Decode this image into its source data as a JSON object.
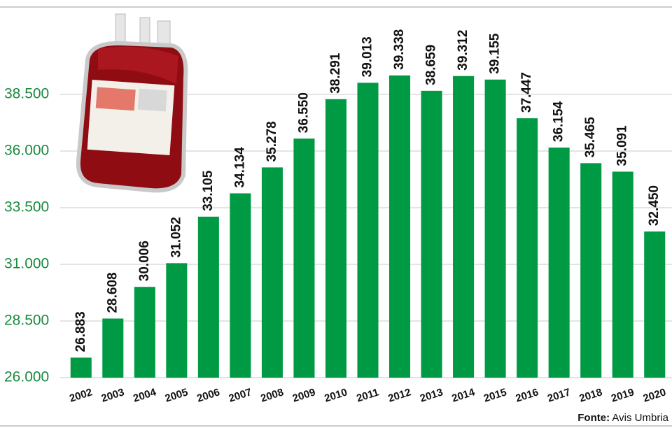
{
  "chart_data": {
    "type": "bar",
    "categories": [
      "2002",
      "2003",
      "2004",
      "2005",
      "2006",
      "2007",
      "2008",
      "2009",
      "2010",
      "2011",
      "2012",
      "2013",
      "2014",
      "2015",
      "2016",
      "2017",
      "2018",
      "2019",
      "2020"
    ],
    "values": [
      26883,
      28608,
      30006,
      31052,
      33105,
      34134,
      35278,
      36550,
      38291,
      39013,
      39338,
      38659,
      39312,
      39155,
      37447,
      36154,
      35465,
      35091,
      32450
    ],
    "value_labels": [
      "26.883",
      "28.608",
      "30.006",
      "31.052",
      "33.105",
      "34.134",
      "35.278",
      "36.550",
      "38.291",
      "39.013",
      "39.338",
      "38.659",
      "39.312",
      "39.155",
      "37.447",
      "36.154",
      "35.465",
      "35.091",
      "32.450"
    ],
    "color": "#009a44",
    "ylim": [
      26000,
      41000
    ],
    "yticks": [
      {
        "value": 26000,
        "label": "26.000"
      },
      {
        "value": 28500,
        "label": "28.500"
      },
      {
        "value": 31000,
        "label": "31.000"
      },
      {
        "value": 33500,
        "label": "33.500"
      },
      {
        "value": 36000,
        "label": "36.000"
      },
      {
        "value": 38500,
        "label": "38.500"
      }
    ],
    "grid": true,
    "source_label": "Fonte:",
    "source": "Avis Umbria"
  }
}
